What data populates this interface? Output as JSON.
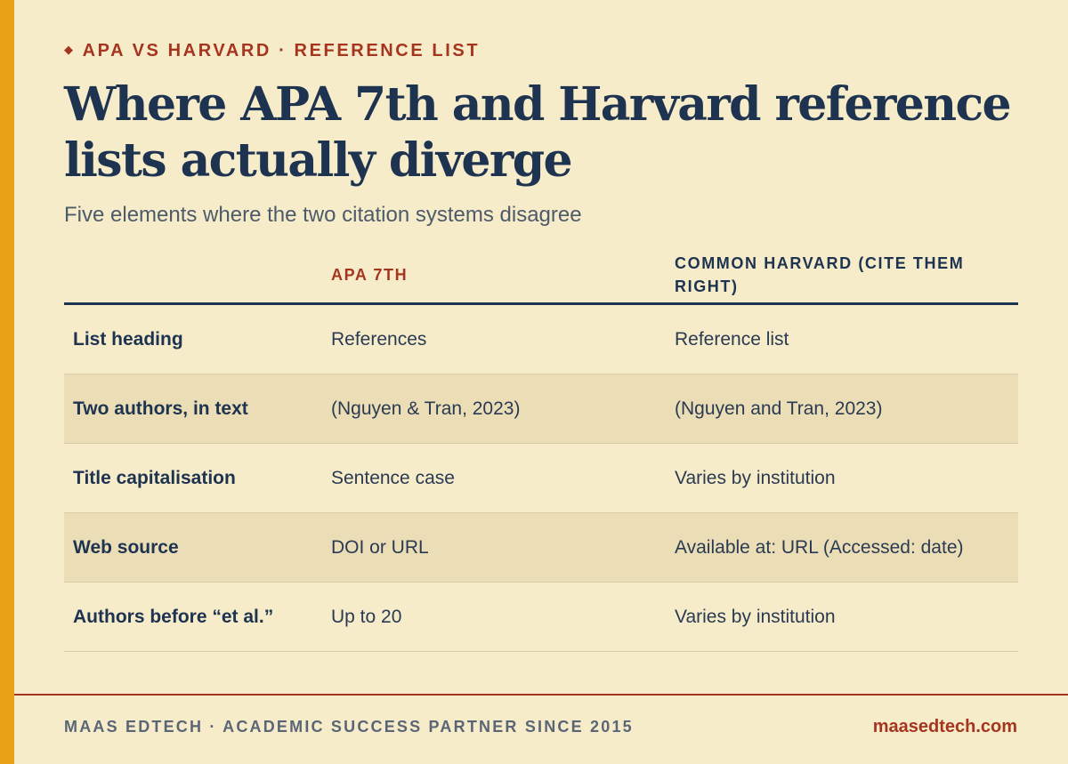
{
  "eyebrow": {
    "icon": "diamond-icon",
    "text": "APA vs Harvard · Reference list"
  },
  "title": "Where APA 7th and Harvard reference lists actually diverge",
  "subtitle": "Five elements where the two citation systems disagree",
  "table": {
    "headers": [
      "",
      "APA 7th",
      "Common Harvard (Cite Them Right)"
    ],
    "rows": [
      {
        "element": "List heading",
        "apa": "References",
        "harvard": "Reference list"
      },
      {
        "element": "Two authors, in text",
        "apa": "(Nguyen & Tran, 2023)",
        "harvard": "(Nguyen and Tran, 2023)"
      },
      {
        "element": "Title capitalisation",
        "apa": "Sentence case",
        "harvard": "Varies by institution"
      },
      {
        "element": "Web source",
        "apa": "DOI or URL",
        "harvard": "Available at: URL (Accessed: date)"
      },
      {
        "element": "Authors before “et al.”",
        "apa": "Up to 20",
        "harvard": "Varies by institution"
      }
    ]
  },
  "footer": {
    "left": "MAAS EdTech · Academic success partner since 2015",
    "right": "maasedtech.com"
  },
  "colors": {
    "background": "#f6ecca",
    "accent": "#e8a117",
    "brand_red": "#a6351f",
    "navy": "#1d3350",
    "alt_row": "#ebdeb6"
  }
}
